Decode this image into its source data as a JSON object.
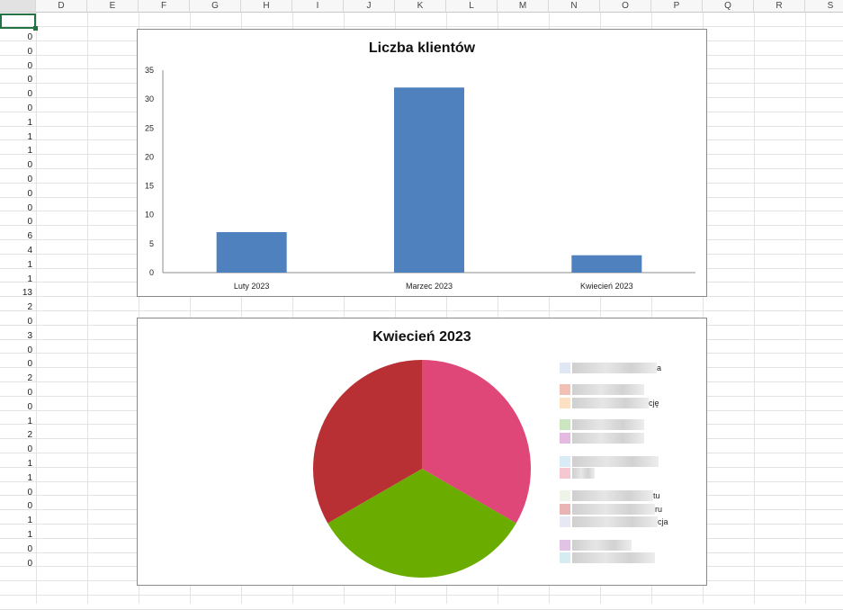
{
  "columns": [
    "D",
    "E",
    "F",
    "G",
    "H",
    "I",
    "J",
    "K",
    "L",
    "M",
    "N",
    "O",
    "P",
    "Q",
    "R",
    "S"
  ],
  "column_a_values": [
    "0",
    "0",
    "0",
    "0",
    "0",
    "0",
    "1",
    "1",
    "1",
    "0",
    "0",
    "0",
    "0",
    "0",
    "6",
    "4",
    "1",
    "1",
    "13",
    "2",
    "0",
    "3",
    "0",
    "0",
    "2",
    "0",
    "0",
    "1",
    "2",
    "0",
    "1",
    "1",
    "0",
    "0",
    "1",
    "1",
    "0",
    "0"
  ],
  "chart1": {
    "title": "Liczba klientów",
    "chart_data": {
      "type": "bar",
      "title": "Liczba klientów",
      "categories": [
        "Luty 2023",
        "Marzec 2023",
        "Kwiecień 2023"
      ],
      "values": [
        7,
        32,
        3
      ],
      "yticks": [
        "0",
        "5",
        "10",
        "15",
        "20",
        "25",
        "30",
        "35"
      ],
      "ylim": [
        0,
        35
      ],
      "color": "#4e81bd"
    }
  },
  "chart2": {
    "title": "Kwiecień 2023",
    "chart_data": {
      "type": "pie",
      "title": "Kwiecień 2023",
      "slices": [
        {
          "value": 1,
          "color": "#de4778"
        },
        {
          "value": 1,
          "color": "#6aad00"
        },
        {
          "value": 1,
          "color": "#b93034"
        }
      ]
    },
    "legend_fragments": [
      "a",
      "cję",
      "tu",
      "ru",
      "cja"
    ]
  },
  "legend_colors": [
    "#dfe7f5",
    "#f2c1b6",
    "#fde0c2",
    "#c9e6c1",
    "#e6b9e3",
    "#d9ebf7",
    "#f4c7d1",
    "#eef4e8",
    "#e8b4b4",
    "#e6e9f3",
    "#e3c2e8",
    "#d5ecf0"
  ]
}
